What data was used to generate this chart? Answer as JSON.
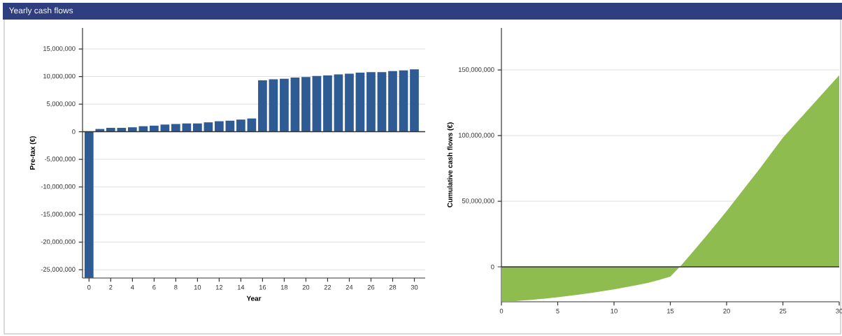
{
  "chart_data": [
    {
      "type": "bar",
      "title": "Yearly cash flows",
      "xlabel": "Year",
      "ylabel": "Pre-tax (€)",
      "x": [
        0,
        1,
        2,
        3,
        4,
        5,
        6,
        7,
        8,
        9,
        10,
        11,
        12,
        13,
        14,
        15,
        16,
        17,
        18,
        19,
        20,
        21,
        22,
        23,
        24,
        25,
        26,
        27,
        28,
        29,
        30
      ],
      "values": [
        -26500000,
        500000,
        700000,
        700000,
        800000,
        1000000,
        1100000,
        1300000,
        1400000,
        1500000,
        1500000,
        1700000,
        1900000,
        2000000,
        2200000,
        2400000,
        9300000,
        9500000,
        9600000,
        9800000,
        9900000,
        10100000,
        10200000,
        10400000,
        10500000,
        10700000,
        10800000,
        10800000,
        11000000,
        11100000,
        11300000
      ],
      "color": "#2e5b94",
      "xlim": [
        -0.6,
        31
      ],
      "xticks": [
        0,
        2,
        4,
        6,
        8,
        10,
        12,
        14,
        16,
        18,
        20,
        22,
        24,
        26,
        28,
        30
      ],
      "ylim": [
        -26500000,
        18800000
      ],
      "yticks": [
        {
          "value": -25000000,
          "label": "-25,000,000"
        },
        {
          "value": -20000000,
          "label": "-20,000,000"
        },
        {
          "value": -15000000,
          "label": "-15,000,000"
        },
        {
          "value": -10000000,
          "label": "-10,000,000"
        },
        {
          "value": -5000000,
          "label": "-5,000,000"
        },
        {
          "value": 0,
          "label": "0"
        },
        {
          "value": 5000000,
          "label": "5,000,000"
        },
        {
          "value": 10000000,
          "label": "10,000,000"
        },
        {
          "value": 15000000,
          "label": "15,000,000"
        }
      ],
      "grid": "y",
      "ref_lines": [
        {
          "axis": "y",
          "value": 0,
          "color": "#333333"
        }
      ]
    },
    {
      "type": "area",
      "ylabel": "Cumulative cash flows (€)",
      "x": [
        0,
        1,
        2,
        3,
        4,
        5,
        6,
        7,
        8,
        9,
        10,
        11,
        12,
        13,
        14,
        15,
        16,
        17,
        18,
        19,
        20,
        21,
        22,
        23,
        24,
        25,
        26,
        27,
        28,
        29,
        30
      ],
      "values": [
        -26500000,
        -26200000,
        -25600000,
        -24900000,
        -24100000,
        -23100000,
        -22100000,
        -21000000,
        -19800000,
        -18500000,
        -17100000,
        -15600000,
        -14000000,
        -12200000,
        -10000000,
        -7500000,
        1500000,
        11500000,
        21500000,
        32000000,
        42500000,
        53500000,
        64500000,
        75500000,
        87000000,
        98500000,
        108000000,
        117500000,
        127000000,
        136500000,
        146000000
      ],
      "color": "#8fbc4e",
      "xlim": [
        0,
        30
      ],
      "xticks": [
        0,
        5,
        10,
        15,
        20,
        25,
        30
      ],
      "ylim": [
        -26600000,
        182000000
      ],
      "yticks": [
        {
          "value": 0,
          "label": "0"
        },
        {
          "value": 50000000,
          "label": "50,000,000"
        },
        {
          "value": 100000000,
          "label": "100,000,000"
        },
        {
          "value": 150000000,
          "label": "150,000,000"
        }
      ],
      "grid": "y",
      "ref_lines": [
        {
          "axis": "y",
          "value": 0,
          "color": "#333333"
        }
      ]
    }
  ]
}
